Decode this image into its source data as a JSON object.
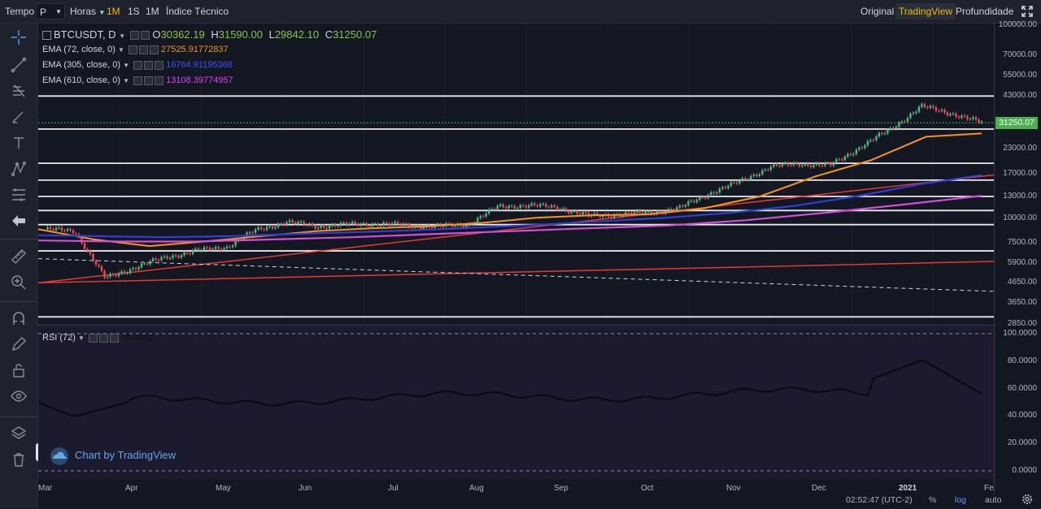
{
  "topbar": {
    "tempo_label": "Tempo",
    "interval_value": "P",
    "horas_label": "Horas",
    "intervals": [
      "1M",
      "1S",
      "1M"
    ],
    "indicators_label": "Índice Técnico",
    "view_original": "Original",
    "view_tradingview": "TradingView",
    "view_depth": "Profundidade"
  },
  "legend": {
    "symbol": "BTCUSDT, D",
    "open_label": "O",
    "open": "30362.19",
    "high_label": "H",
    "high": "31590.00",
    "low_label": "L",
    "low": "29842.10",
    "close_label": "C",
    "close": "31250.07",
    "ema1_label": "EMA (72, close, 0)",
    "ema1_value": "27525.91772837",
    "ema2_label": "EMA (305, close, 0)",
    "ema2_value": "16764.91195368",
    "ema3_label": "EMA (610, close, 0)",
    "ema3_value": "13108.39774957",
    "rsi_label": "RSI (72)",
    "rsi_value": "56.5080"
  },
  "colors": {
    "ema1": "#f7931a",
    "ema2": "#2f3ed6",
    "ema3": "#d14fd9",
    "up": "#53b987",
    "down": "#eb4d5c",
    "trend": "#e53935",
    "price_tag": "#4caf50"
  },
  "price_axis": [
    "100000.00",
    "70000.00",
    "55000.00",
    "43000.00",
    "31250.07",
    "23000.00",
    "17000.00",
    "13000.00",
    "10000.00",
    "7500.00",
    "5900.00",
    "4650.00",
    "3650.00",
    "2850.00"
  ],
  "rsi_axis": [
    "100.0000",
    "80.0000",
    "60.0000",
    "40.0000",
    "20.0000",
    "0.0000"
  ],
  "time_axis": [
    "Mar",
    "Apr",
    "May",
    "Jun",
    "Jul",
    "Aug",
    "Sep",
    "Oct",
    "Nov",
    "Dec",
    "2021",
    "Fe"
  ],
  "watermark": "Chart by TradingView",
  "footer": {
    "clock": "02:52:47 (UTC-2)",
    "percent": "%",
    "log": "log",
    "auto": "auto"
  },
  "chart_data": {
    "type": "candlestick",
    "title": "BTCUSDT, D",
    "y_scale": "log",
    "ylim": [
      2850,
      100000
    ],
    "x": [
      "Mar",
      "Apr",
      "May",
      "Jun",
      "Jul",
      "Aug",
      "Sep",
      "Oct",
      "Nov",
      "Dec",
      "2021",
      "Fe"
    ],
    "close_series": [
      8800,
      8600,
      4900,
      5600,
      6300,
      6800,
      7100,
      8700,
      9600,
      9100,
      9300,
      9400,
      9200,
      9100,
      9300,
      11500,
      11700,
      11400,
      10300,
      10500,
      10700,
      11300,
      13500,
      15500,
      18500,
      19200,
      18800,
      23500,
      29000,
      38000,
      35000,
      31250
    ],
    "ema_series": [
      {
        "name": "EMA (72, close, 0)",
        "values": [
          8800,
          7800,
          7200,
          7600,
          8100,
          8600,
          8900,
          9100,
          9500,
          10100,
          10400,
          10500,
          11300,
          13000,
          16500,
          20000,
          26500,
          27525
        ]
      },
      {
        "name": "EMA (305, close, 0)",
        "values": [
          8200,
          8100,
          8000,
          8100,
          8300,
          8500,
          8700,
          9000,
          9300,
          9700,
          10100,
          10700,
          11600,
          13000,
          15000,
          16764
        ]
      },
      {
        "name": "EMA (610, close, 0)",
        "values": [
          7700,
          7600,
          7600,
          7800,
          8000,
          8300,
          8600,
          8900,
          9200,
          9800,
          10700,
          11800,
          13108
        ]
      }
    ],
    "horizontal_levels": [
      43000,
      29000,
      19300,
      15800,
      13000,
      11000,
      9300,
      6800,
      3100
    ],
    "rsi": {
      "name": "RSI (72)",
      "levels": [
        0,
        100
      ],
      "last": 56.508
    }
  }
}
